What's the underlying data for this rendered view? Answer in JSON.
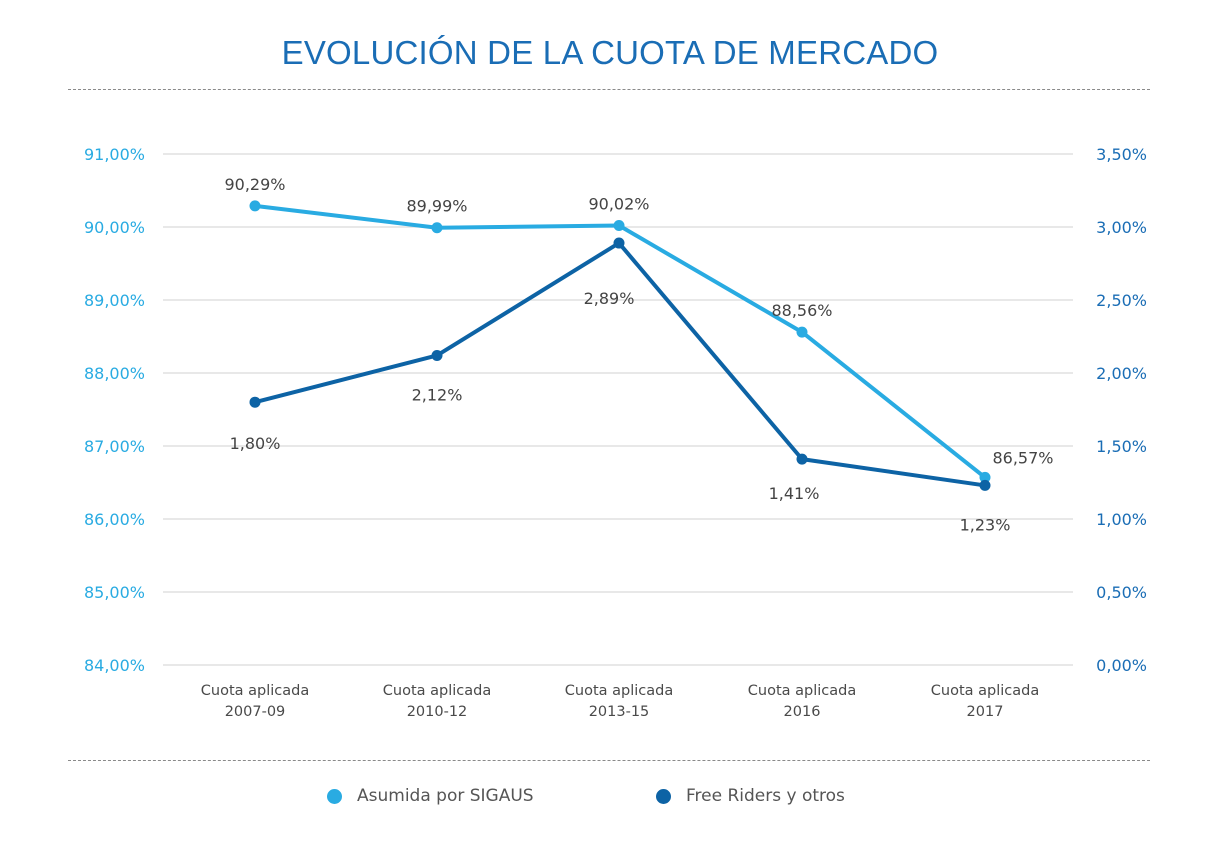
{
  "title": "EVOLUCIÓN DE LA CUOTA DE MERCADO",
  "colors": {
    "sigaus": "#29abe2",
    "free_riders": "#0d63a5",
    "grid": "#d9d9d9"
  },
  "legend": [
    {
      "label": "Asumida por SIGAUS",
      "color": "#29abe2"
    },
    {
      "label": "Free Riders y otros",
      "color": "#0d63a5"
    }
  ],
  "chart_data": {
    "type": "line",
    "title": "EVOLUCIÓN DE LA CUOTA DE MERCADO",
    "categories": [
      [
        "Cuota aplicada",
        "2007-09"
      ],
      [
        "Cuota aplicada",
        "2010-12"
      ],
      [
        "Cuota aplicada",
        "2013-15"
      ],
      [
        "Cuota aplicada",
        "2016"
      ],
      [
        "Cuota aplicada",
        "2017"
      ]
    ],
    "y_left": {
      "ylim": [
        84,
        91
      ],
      "ticks": [
        91,
        90,
        89,
        88,
        87,
        86,
        85,
        84
      ],
      "tick_labels": [
        "91,00%",
        "90,00%",
        "89,00%",
        "88,00%",
        "87,00%",
        "86,00%",
        "85,00%",
        "84,00%"
      ]
    },
    "y_right": {
      "ylim": [
        0,
        3.5
      ],
      "ticks": [
        3.5,
        3.0,
        2.5,
        2.0,
        1.5,
        1.0,
        0.5,
        0.0
      ],
      "tick_labels": [
        "3,50%",
        "3,00%",
        "2,50%",
        "2,00%",
        "1,50%",
        "1,00%",
        "0,50%",
        "0,00%"
      ]
    },
    "series": [
      {
        "name": "Asumida por SIGAUS",
        "axis": "left",
        "values": [
          90.29,
          89.99,
          90.02,
          88.56,
          86.57
        ],
        "labels": [
          "90,29%",
          "89,99%",
          "90,02%",
          "88,56%",
          "86,57%"
        ]
      },
      {
        "name": "Free Riders y otros",
        "axis": "right",
        "values": [
          1.8,
          2.12,
          2.89,
          1.41,
          1.23
        ],
        "labels": [
          "1,80%",
          "2,12%",
          "2,89%",
          "1,41%",
          "1,23%"
        ]
      }
    ],
    "grid": true,
    "legend_position": "bottom"
  }
}
